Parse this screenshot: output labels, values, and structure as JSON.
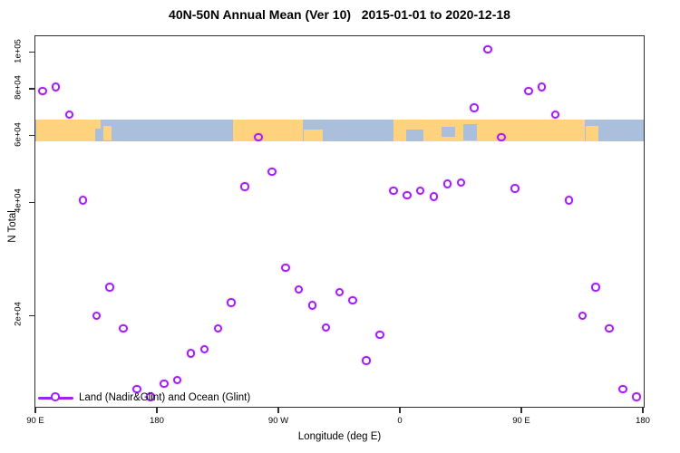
{
  "title": "40N-50N Annual Mean (Ver 10)   2015-01-01 to 2020-12-18",
  "legend": {
    "label": "Land (Nadir&Glint) and Ocean (Glint)"
  },
  "colors": {
    "point": "#a020f0",
    "land": "#ffd37e",
    "ocean": "#a9bfdb",
    "axis": "#2e2e2e"
  },
  "axes": {
    "x": {
      "label": "Longitude (deg E)",
      "ticks": [
        {
          "label": "90 E",
          "deg": 90
        },
        {
          "label": "180",
          "deg": 180
        },
        {
          "label": "90 W",
          "deg": 270
        },
        {
          "label": "0",
          "deg": 360
        },
        {
          "label": "90 E",
          "deg": 450
        },
        {
          "label": "180",
          "deg": 540
        }
      ]
    },
    "y": {
      "label": "N Total",
      "scale": "log",
      "ticks": [
        {
          "label": "1e+05",
          "value": 100000
        },
        {
          "label": "8e+04",
          "value": 80000
        },
        {
          "label": "6e+04",
          "value": 60000
        },
        {
          "label": "4e+04",
          "value": 40000
        },
        {
          "label": "2e+04",
          "value": 20000
        }
      ]
    }
  },
  "map_band": {
    "description": "40N-50N latitude land/ocean strip drawn across the plot near 6e+04",
    "value_range": [
      59000,
      67000
    ],
    "land_segments": [
      {
        "from": 90,
        "to": 133.5,
        "t": 0,
        "b": 1
      },
      {
        "from": 133.8,
        "to": 137.5,
        "t": 0,
        "b": 0.42
      },
      {
        "from": 140,
        "to": 145.5,
        "t": 0.3,
        "b": 0.95
      },
      {
        "from": 235.5,
        "to": 287.5,
        "t": 0,
        "b": 1
      },
      {
        "from": 288,
        "to": 302,
        "t": 0.45,
        "b": 1
      },
      {
        "from": 354.5,
        "to": 496.5,
        "t": 0,
        "b": 1
      },
      {
        "from": 497,
        "to": 506.5,
        "t": 0.3,
        "b": 1
      }
    ],
    "water_patches": [
      {
        "from": 364,
        "to": 377,
        "t": 0.45,
        "b": 1
      },
      {
        "from": 390,
        "to": 400.5,
        "t": 0.35,
        "b": 0.8
      },
      {
        "from": 406.5,
        "to": 416.5,
        "t": 0.2,
        "b": 0.95
      }
    ]
  },
  "chart_data": {
    "type": "scatter",
    "title": "40N-50N Annual Mean (Ver 10)   2015-01-01 to 2020-12-18",
    "xlabel": "Longitude (deg E)",
    "ylabel": "N Total",
    "x_range_deg": [
      90,
      540
    ],
    "ylim": [
      11000,
      110000
    ],
    "y_scale": "log",
    "grid": false,
    "legend_position": "bottom-left",
    "point_style": "open-circle purple",
    "series": [
      {
        "name": "Land (Nadir&Glint) and Ocean (Glint)",
        "x_deg": [
          95,
          105,
          115,
          125,
          135,
          145,
          155,
          165,
          175,
          185,
          195,
          205,
          215,
          225,
          235,
          245,
          255,
          265,
          275,
          285,
          295,
          305,
          315,
          325,
          335,
          345,
          355,
          365,
          375,
          385,
          395,
          405,
          415,
          425,
          435,
          445,
          455,
          465,
          475,
          485,
          495,
          505,
          515,
          525,
          535
        ],
        "y": [
          79000,
          81000,
          68300,
          40500,
          20000,
          23800,
          18500,
          12800,
          12200,
          13200,
          13500,
          15900,
          16300,
          18500,
          21700,
          44000,
          59500,
          48300,
          26800,
          23500,
          21300,
          18600,
          23100,
          22000,
          15200,
          17800,
          43000,
          41800,
          43000,
          41400,
          44800,
          45200,
          71300,
          102000,
          59500,
          43500,
          79000,
          81000,
          68300,
          40500,
          20000,
          23800,
          18500,
          12800,
          12200
        ]
      }
    ]
  }
}
